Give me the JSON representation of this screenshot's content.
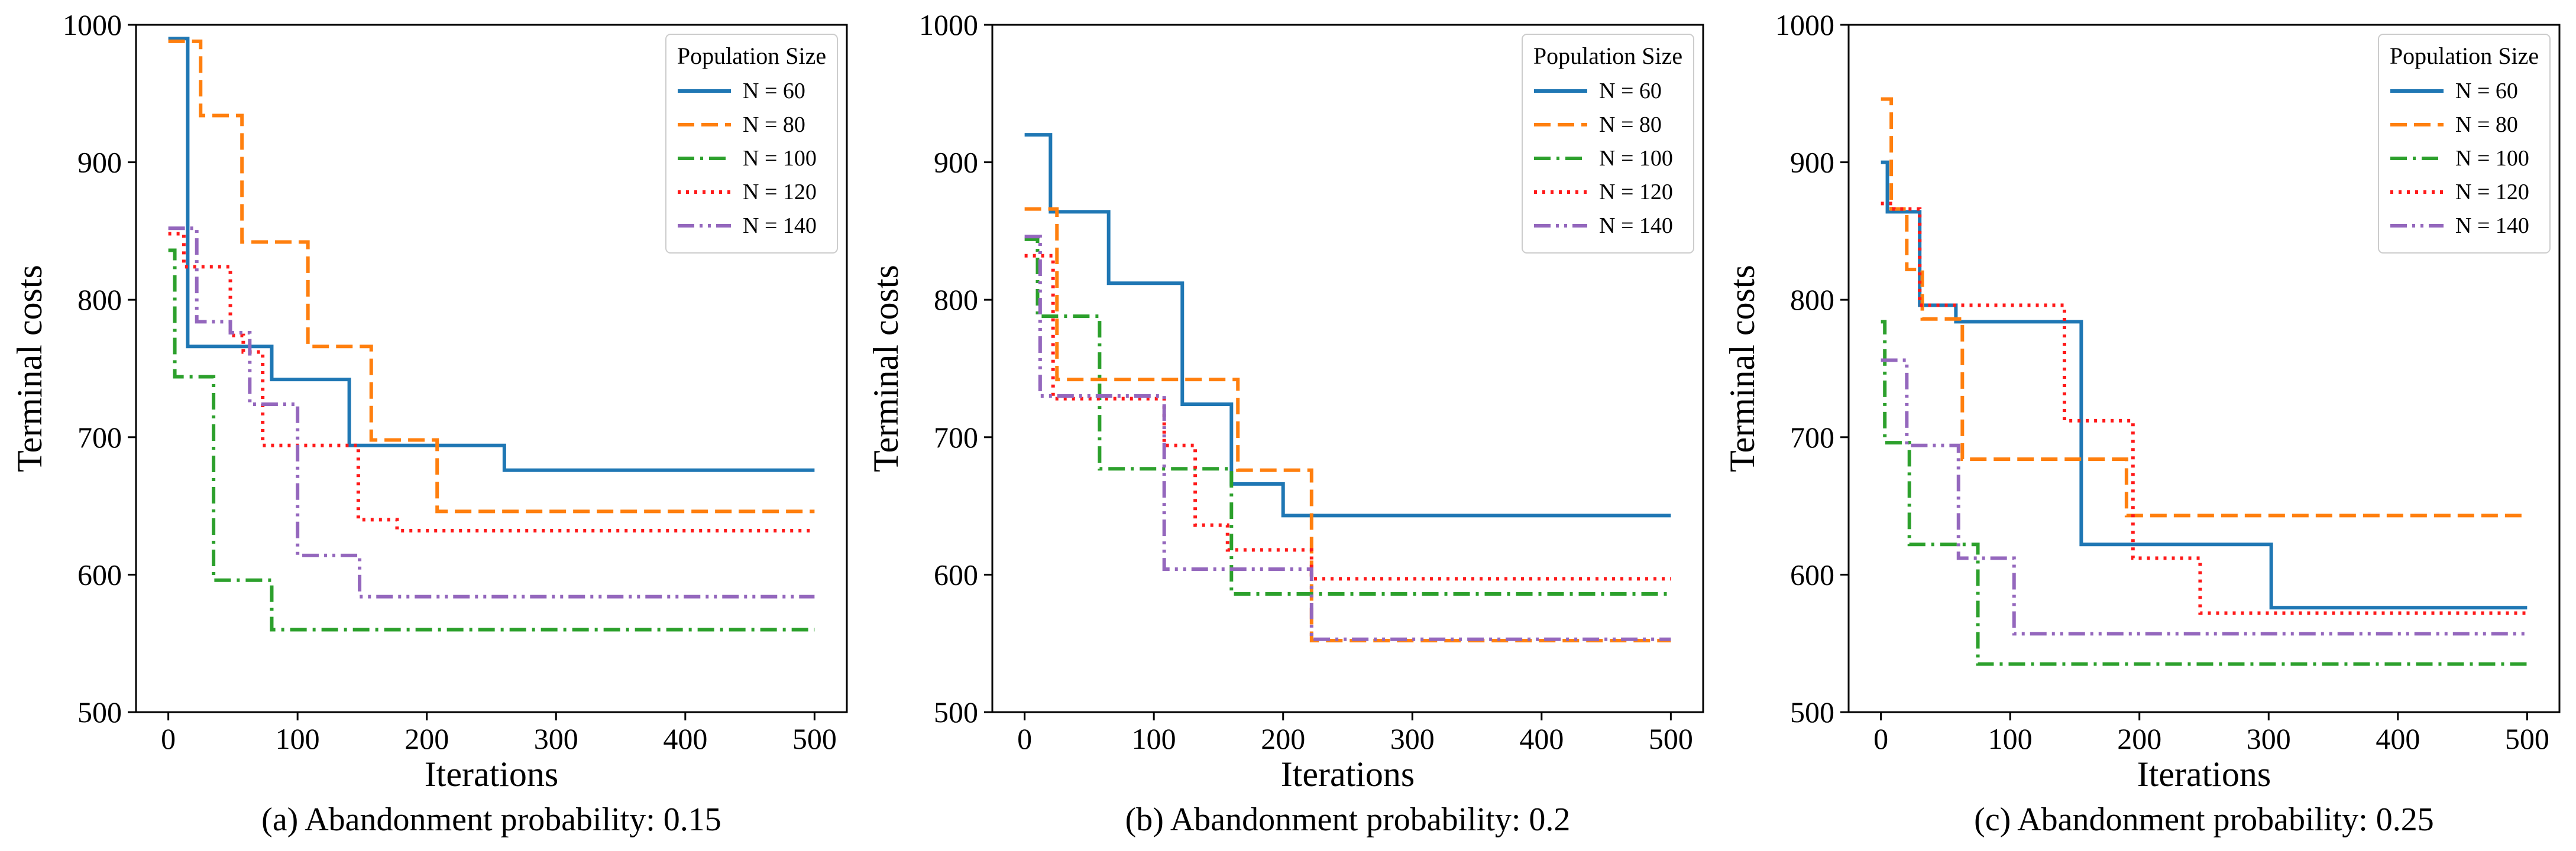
{
  "chart_data": [
    {
      "type": "line",
      "step": true,
      "caption": "(a) Abandonment probability: 0.15",
      "xlabel": "Iterations",
      "ylabel": "Terminal costs",
      "xlim": [
        -25,
        525
      ],
      "ylim": [
        500,
        1000
      ],
      "xticks": [
        "0",
        "100",
        "200",
        "300",
        "400",
        "500"
      ],
      "yticks": [
        "500",
        "600",
        "700",
        "800",
        "900",
        "1000"
      ],
      "legend_title": "Population Size",
      "legend_position": "top-right",
      "series": [
        {
          "name": "N = 60",
          "color": "#1f77b4",
          "dash": "solid",
          "x": [
            0,
            15,
            80,
            140,
            260,
            500
          ],
          "y": [
            990,
            766,
            742,
            694,
            676,
            676
          ]
        },
        {
          "name": "N = 80",
          "color": "#ff7f0e",
          "dash": "dashed",
          "x": [
            0,
            25,
            57,
            108,
            157,
            208,
            500
          ],
          "y": [
            988,
            934,
            842,
            766,
            698,
            646,
            646
          ]
        },
        {
          "name": "N = 100",
          "color": "#2ca02c",
          "dash": "dashdot",
          "x": [
            0,
            5,
            35,
            80,
            500
          ],
          "y": [
            836,
            744,
            596,
            560,
            560
          ]
        },
        {
          "name": "N = 120",
          "color": "#ff1a1a",
          "dash": "dotted",
          "x": [
            0,
            12,
            48,
            58,
            73,
            147,
            177,
            500
          ],
          "y": [
            848,
            824,
            774,
            762,
            694,
            640,
            632,
            632
          ]
        },
        {
          "name": "N = 140",
          "color": "#9467bd",
          "dash": "dashdotdot",
          "x": [
            0,
            22,
            48,
            63,
            100,
            148,
            500
          ],
          "y": [
            852,
            784,
            776,
            724,
            614,
            584,
            584
          ]
        }
      ]
    },
    {
      "type": "line",
      "step": true,
      "caption": "(b) Abandonment probability: 0.2",
      "xlabel": "Iterations",
      "ylabel": "Terminal costs",
      "xlim": [
        -25,
        525
      ],
      "ylim": [
        500,
        1000
      ],
      "xticks": [
        "0",
        "100",
        "200",
        "300",
        "400",
        "500"
      ],
      "yticks": [
        "500",
        "600",
        "700",
        "800",
        "900",
        "1000"
      ],
      "legend_title": "Population Size",
      "legend_position": "top-right",
      "series": [
        {
          "name": "N = 60",
          "color": "#1f77b4",
          "dash": "solid",
          "x": [
            0,
            20,
            65,
            122,
            160,
            200,
            500
          ],
          "y": [
            920,
            864,
            812,
            724,
            666,
            643,
            643
          ]
        },
        {
          "name": "N = 80",
          "color": "#ff7f0e",
          "dash": "dashed",
          "x": [
            0,
            25,
            165,
            222,
            500
          ],
          "y": [
            866,
            742,
            676,
            552,
            552
          ]
        },
        {
          "name": "N = 100",
          "color": "#2ca02c",
          "dash": "dashdot",
          "x": [
            0,
            10,
            58,
            160,
            500
          ],
          "y": [
            844,
            788,
            677,
            586,
            586
          ]
        },
        {
          "name": "N = 120",
          "color": "#ff1a1a",
          "dash": "dotted",
          "x": [
            0,
            22,
            108,
            132,
            157,
            222,
            500
          ],
          "y": [
            832,
            728,
            694,
            636,
            618,
            597,
            597
          ]
        },
        {
          "name": "N = 140",
          "color": "#9467bd",
          "dash": "dashdotdot",
          "x": [
            0,
            12,
            108,
            222,
            500
          ],
          "y": [
            846,
            730,
            604,
            553,
            553
          ]
        }
      ]
    },
    {
      "type": "line",
      "step": true,
      "caption": "(c) Abandonment probability: 0.25",
      "xlabel": "Iterations",
      "ylabel": "Terminal costs",
      "xlim": [
        -25,
        525
      ],
      "ylim": [
        500,
        1000
      ],
      "xticks": [
        "0",
        "100",
        "200",
        "300",
        "400",
        "500"
      ],
      "yticks": [
        "500",
        "600",
        "700",
        "800",
        "900",
        "1000"
      ],
      "legend_title": "Population Size",
      "legend_position": "top-right",
      "series": [
        {
          "name": "N = 60",
          "color": "#1f77b4",
          "dash": "solid",
          "x": [
            0,
            5,
            30,
            58,
            155,
            302,
            500
          ],
          "y": [
            900,
            864,
            796,
            784,
            622,
            576,
            576
          ]
        },
        {
          "name": "N = 80",
          "color": "#ff7f0e",
          "dash": "dashed",
          "x": [
            0,
            8,
            20,
            32,
            63,
            190,
            500
          ],
          "y": [
            946,
            866,
            822,
            786,
            684,
            643,
            643
          ]
        },
        {
          "name": "N = 100",
          "color": "#2ca02c",
          "dash": "dashdot",
          "x": [
            0,
            3,
            22,
            75,
            500
          ],
          "y": [
            784,
            696,
            622,
            535,
            535
          ]
        },
        {
          "name": "N = 120",
          "color": "#ff1a1a",
          "dash": "dotted",
          "x": [
            0,
            10,
            30,
            142,
            195,
            247,
            500
          ],
          "y": [
            870,
            866,
            796,
            712,
            612,
            572,
            572
          ]
        },
        {
          "name": "N = 140",
          "color": "#9467bd",
          "dash": "dashdotdot",
          "x": [
            0,
            20,
            60,
            103,
            500
          ],
          "y": [
            756,
            694,
            612,
            557,
            557
          ]
        }
      ]
    }
  ]
}
